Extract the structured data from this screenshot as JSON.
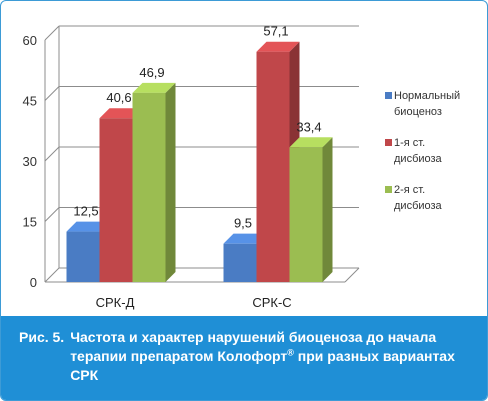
{
  "chart_data": {
    "type": "bar",
    "style": "3d-clustered",
    "categories": [
      "СРК-Д",
      "СРК-С"
    ],
    "series": [
      {
        "name": "Нормальный биоценоз",
        "name_lines": [
          "Нормальный",
          "биоценоз"
        ],
        "values": [
          12.5,
          9.5
        ],
        "labels": [
          "12,5",
          "9,5"
        ],
        "color": "#4a7cc4"
      },
      {
        "name": "1-я ст. дисбиоза",
        "name_lines": [
          "1-я ст.",
          "дисбиоза"
        ],
        "values": [
          40.6,
          57.1
        ],
        "labels": [
          "40,6",
          "57,1"
        ],
        "color": "#c0474a"
      },
      {
        "name": "2-я ст. дисбиоза",
        "name_lines": [
          "2-я ст.",
          "дисбиоза"
        ],
        "values": [
          46.9,
          33.4
        ],
        "labels": [
          "46,9",
          "33,4"
        ],
        "color": "#9bbd51"
      }
    ],
    "ylim": [
      0,
      60
    ],
    "yticks": [
      0,
      15,
      30,
      45,
      60
    ],
    "grid": true,
    "legend_position": "right"
  },
  "caption": {
    "label": "Рис. 5.",
    "text": "Частота и характер нарушений биоценоза до начала терапии препаратом Колофорт",
    "sup": "®",
    "text_after": " при разных вариантах СРК"
  },
  "colors": {
    "frame_border": "#3d9bd6",
    "caption_bg": "#1f8fd6",
    "grid": "#8c8c8c"
  }
}
